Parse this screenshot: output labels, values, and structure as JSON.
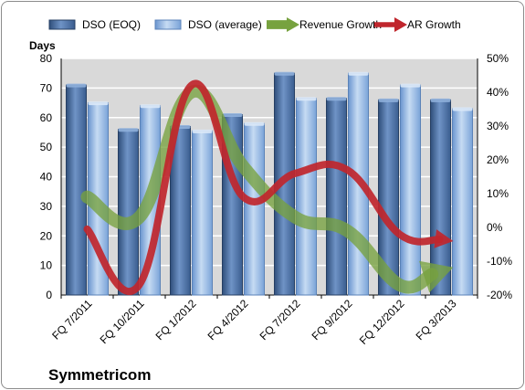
{
  "chart_data": {
    "type": "bar",
    "categories": [
      "FQ 7/2011",
      "FQ 10/2011",
      "FQ 1/2012",
      "FQ 4/2012",
      "FQ 7/2012",
      "FQ 9/2012",
      "FQ 12/2012",
      "FQ 3/2013"
    ],
    "series": [
      {
        "name": "DSO (EOQ)",
        "type": "bar",
        "axis": "left",
        "color": "#4a6fa5",
        "values": [
          71,
          56,
          57,
          61,
          75,
          66.5,
          66,
          66
        ]
      },
      {
        "name": "DSO (average)",
        "type": "bar",
        "axis": "left",
        "color": "#8db3e2",
        "values": [
          65,
          64,
          55.5,
          58,
          66.5,
          75,
          71,
          63
        ]
      },
      {
        "name": "Revenue Growth",
        "type": "line",
        "axis": "right",
        "color": "#77a23f",
        "values": [
          9,
          3,
          40,
          18,
          3,
          -1,
          -17,
          -12
        ]
      },
      {
        "name": "AR Growth",
        "type": "line",
        "axis": "right",
        "color": "#c0262d",
        "values": [
          -0.5,
          -17,
          42,
          9,
          16,
          17,
          -2,
          -4
        ]
      }
    ],
    "ylabel": "Days",
    "ylim": [
      0,
      80
    ],
    "yticks": [
      "0",
      "10",
      "20",
      "30",
      "40",
      "50",
      "60",
      "70",
      "80"
    ],
    "y2lim": [
      -20,
      50
    ],
    "y2ticks": [
      "-20%",
      "-10%",
      "0%",
      "10%",
      "20%",
      "30%",
      "40%",
      "50%"
    ],
    "grid": true,
    "legend": "top",
    "plot_background": "#d9d9d9",
    "company": "Symmetricom"
  }
}
